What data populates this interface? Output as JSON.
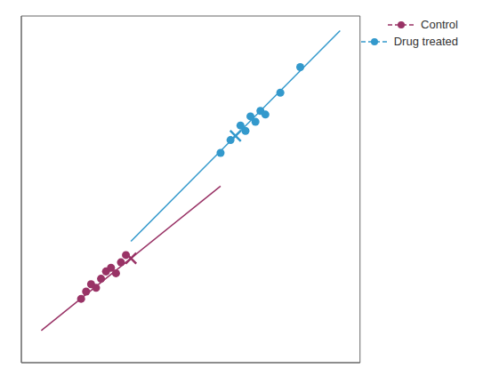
{
  "chart_data": {
    "type": "scatter",
    "xlim": [
      2,
      36
    ],
    "ylim": [
      2,
      21
    ],
    "tick_labels": false,
    "grid": false,
    "legend": "upper right",
    "series": [
      {
        "name": "Control",
        "color": "#993366",
        "marker": "circle",
        "line_style": "dashed",
        "x": [
          8,
          8.5,
          9,
          9.5,
          10,
          10.5,
          11,
          11.5,
          12,
          12.5
        ],
        "values": [
          5.5,
          5.9,
          6.3,
          6.1,
          6.6,
          7.0,
          7.2,
          6.9,
          7.5,
          7.9
        ],
        "fit_line": {
          "x": [
            4,
            22
          ],
          "values": [
            3.76,
            11.68
          ]
        },
        "center": {
          "x": [
            13.0
          ],
          "values": [
            7.72
          ]
        }
      },
      {
        "name": "Drug treated",
        "color": "#3399cc",
        "marker": "circle",
        "line_style": "dashed",
        "x": [
          22,
          23,
          24,
          24.5,
          25,
          25.5,
          26,
          26.5,
          28,
          30
        ],
        "values": [
          13.5,
          14.2,
          15.0,
          14.7,
          15.5,
          15.2,
          15.8,
          15.6,
          16.8,
          18.2
        ],
        "fit_line": {
          "x": [
            13,
            34
          ],
          "values": [
            8.65,
            20.2
          ]
        },
        "center": {
          "x": [
            23.5
          ],
          "values": [
            14.425
          ]
        }
      }
    ]
  }
}
